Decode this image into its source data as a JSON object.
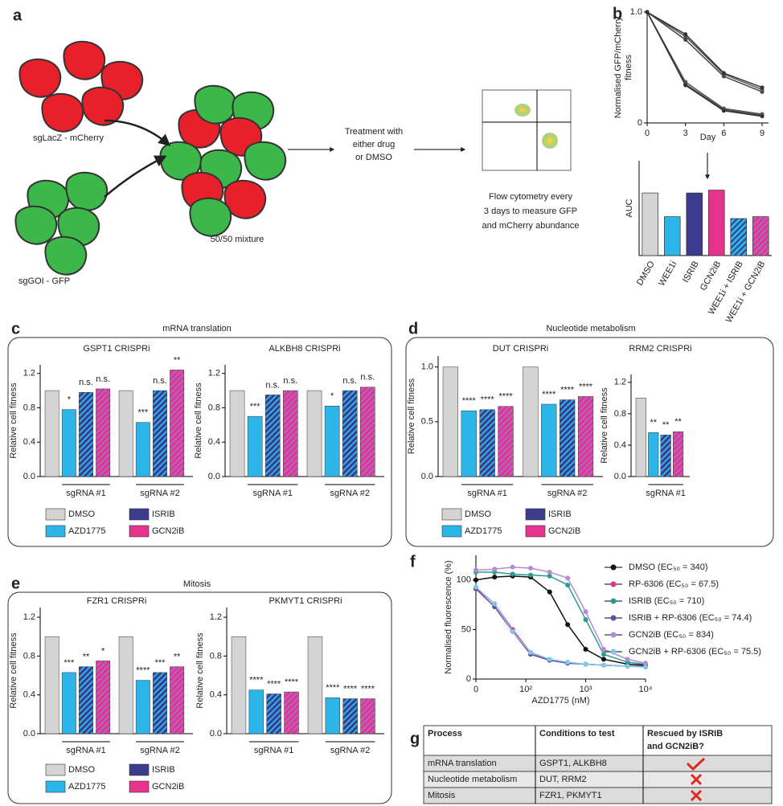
{
  "panel_letters": [
    "a",
    "b",
    "c",
    "d",
    "e",
    "f",
    "g"
  ],
  "diagram": {
    "red_label": "sgLacZ - mCherry",
    "green_label": "sgGOI - GFP",
    "mixture_label": "50/50 mixture",
    "treatment": [
      "Treatment with",
      "either drug",
      "or DMSO"
    ],
    "flow": [
      "Flow cytometry every",
      "3 days to measure GFP",
      "and mCherry abundance"
    ]
  },
  "sections": [
    {
      "title": "mRNA translation",
      "legend": [
        "DMSO",
        "AZD1775",
        "ISRIB",
        "GCN2iB"
      ]
    },
    {
      "title": "Nucleotide metabolism",
      "legend": [
        "DMSO",
        "AZD1775",
        "ISRIB",
        "GCN2iB"
      ]
    },
    {
      "title": "Mitosis",
      "legend": [
        "DMSO",
        "AZD1775",
        "ISRIB",
        "GCN2iB"
      ]
    }
  ],
  "chart_data": [
    {
      "type": "line",
      "xlabel": "Day",
      "ylabel": [
        "Normalised GFP/mCherry",
        "fitness"
      ],
      "x": [
        0,
        3,
        6,
        9
      ],
      "xlim": [
        0,
        9.5
      ],
      "xticks": [
        0,
        3,
        6,
        9
      ],
      "ylim": [
        0,
        1
      ],
      "yticks": [
        0,
        {
          "value": 1,
          "label": "1.0"
        }
      ],
      "series": [
        {
          "color": "#444444",
          "values": [
            1.0,
            0.75,
            0.42,
            0.28
          ]
        },
        {
          "color": "#555555",
          "values": [
            1.0,
            0.78,
            0.44,
            0.3
          ]
        },
        {
          "color": "#333333",
          "values": [
            1.0,
            0.8,
            0.45,
            0.32
          ]
        },
        {
          "color": "#444444",
          "values": [
            1.0,
            0.35,
            0.12,
            0.07
          ]
        },
        {
          "color": "#555555",
          "values": [
            1.0,
            0.37,
            0.13,
            0.08
          ]
        },
        {
          "color": "#333333",
          "values": [
            1.0,
            0.34,
            0.11,
            0.06
          ]
        }
      ]
    },
    {
      "type": "bar",
      "ylabel": "AUC",
      "categories": [
        "DMSO",
        "WEE1i",
        "ISRIB",
        "GCN2iB",
        "WEE1i + ISRIB",
        "WEE1i + GCN2iB"
      ],
      "values": [
        0.66,
        0.41,
        0.66,
        0.69,
        0.39,
        0.41
      ],
      "ylim": [
        0,
        1
      ],
      "colors": [
        "#d4d4d4",
        "#2bb5e8",
        "#3b3c8e",
        "#e5338e",
        "#2bb5e8",
        "#e5338e"
      ],
      "hatch": [
        null,
        null,
        null,
        null,
        "#3b3c8e",
        "#a66cc8"
      ]
    },
    {
      "type": "grouped_bar",
      "title": "GSPT1 CRISPRi",
      "ylabel": "Relative cell fitness",
      "categories": [
        "sgRNA #1",
        "sgRNA #2"
      ],
      "ylim": [
        0,
        1.3
      ],
      "yticks": [
        {
          "value": 0,
          "label": "0.0"
        },
        {
          "value": 0.4,
          "label": "0.4"
        },
        {
          "value": 0.8,
          "label": "0.8"
        },
        {
          "value": 1.2,
          "label": "1.2"
        }
      ],
      "series": [
        {
          "color": "#d4d4d4",
          "values": [
            1.0,
            1.0
          ]
        },
        {
          "color": "#2bb5e8",
          "values": [
            0.78,
            0.63
          ],
          "annotations": [
            "*",
            "***"
          ]
        },
        {
          "color": "#3b3c8e",
          "hatch": "#2bb5e8",
          "values": [
            0.98,
            1.0
          ],
          "annotations": [
            "n.s.",
            "n.s."
          ]
        },
        {
          "color": "#e5338e",
          "hatch": "#a66cc8",
          "values": [
            1.02,
            1.24
          ],
          "annotations": [
            "n.s.",
            "**"
          ]
        }
      ]
    },
    {
      "type": "grouped_bar",
      "title": "ALKBH8 CRISPRi",
      "ylabel": "Relative cell fitness",
      "categories": [
        "sgRNA #1",
        "sgRNA #2"
      ],
      "ylim": [
        0,
        1.3
      ],
      "yticks": [
        {
          "value": 0,
          "label": "0.0"
        },
        {
          "value": 0.4,
          "label": "0.4"
        },
        {
          "value": 0.8,
          "label": "0.8"
        },
        {
          "value": 1.2,
          "label": "1.2"
        }
      ],
      "series": [
        {
          "color": "#d4d4d4",
          "values": [
            1.0,
            1.0
          ]
        },
        {
          "color": "#2bb5e8",
          "values": [
            0.7,
            0.82
          ],
          "annotations": [
            "***",
            "*"
          ]
        },
        {
          "color": "#3b3c8e",
          "hatch": "#2bb5e8",
          "values": [
            0.95,
            1.0
          ],
          "annotations": [
            "n.s.",
            "n.s."
          ]
        },
        {
          "color": "#e5338e",
          "hatch": "#a66cc8",
          "values": [
            1.0,
            1.04
          ],
          "annotations": [
            "n.s.",
            "n.s."
          ]
        }
      ]
    },
    {
      "type": "grouped_bar",
      "title": "DUT CRISPRi",
      "ylabel": "Relative cell fitness",
      "categories": [
        "sgRNA #1",
        "sgRNA #2"
      ],
      "ylim": [
        0,
        1.1
      ],
      "yticks": [
        {
          "value": 0,
          "label": "0.0"
        },
        {
          "value": 0.5,
          "label": "0.5"
        },
        {
          "value": 1,
          "label": "1.0"
        }
      ],
      "series": [
        {
          "color": "#d4d4d4",
          "values": [
            1.0,
            1.0
          ]
        },
        {
          "color": "#2bb5e8",
          "values": [
            0.6,
            0.66
          ],
          "annotations": [
            "****",
            "****"
          ]
        },
        {
          "color": "#3b3c8e",
          "hatch": "#2bb5e8",
          "values": [
            0.61,
            0.7
          ],
          "annotations": [
            "****",
            "****"
          ]
        },
        {
          "color": "#e5338e",
          "hatch": "#a66cc8",
          "values": [
            0.64,
            0.73
          ],
          "annotations": [
            "****",
            "****"
          ]
        }
      ]
    },
    {
      "type": "grouped_bar",
      "title": "RRM2 CRISPRi",
      "ylabel": "Relative cell fitness",
      "categories": [
        "sgRNA #1"
      ],
      "ylim": [
        0,
        1.3
      ],
      "yticks": [
        {
          "value": 0,
          "label": "0.0"
        },
        {
          "value": 0.4,
          "label": "0.4"
        },
        {
          "value": 0.8,
          "label": "0.8"
        },
        {
          "value": 1.2,
          "label": "1.2"
        }
      ],
      "series": [
        {
          "color": "#d4d4d4",
          "values": [
            1.0
          ]
        },
        {
          "color": "#2bb5e8",
          "values": [
            0.56
          ],
          "annotations": [
            "**"
          ]
        },
        {
          "color": "#3b3c8e",
          "hatch": "#2bb5e8",
          "values": [
            0.53
          ],
          "annotations": [
            "**"
          ]
        },
        {
          "color": "#e5338e",
          "hatch": "#a66cc8",
          "values": [
            0.57
          ],
          "annotations": [
            "**"
          ]
        }
      ]
    },
    {
      "type": "grouped_bar",
      "title": "FZR1 CRISPRi",
      "ylabel": "Relative cell fitness",
      "categories": [
        "sgRNA #1",
        "sgRNA #2"
      ],
      "ylim": [
        0,
        1.3
      ],
      "yticks": [
        {
          "value": 0,
          "label": "0.0"
        },
        {
          "value": 0.4,
          "label": "0.4"
        },
        {
          "value": 0.8,
          "label": "0.8"
        },
        {
          "value": 1.2,
          "label": "1.2"
        }
      ],
      "series": [
        {
          "color": "#d4d4d4",
          "values": [
            1.0,
            1.0
          ]
        },
        {
          "color": "#2bb5e8",
          "values": [
            0.63,
            0.55
          ],
          "annotations": [
            "***",
            "****"
          ]
        },
        {
          "color": "#3b3c8e",
          "hatch": "#2bb5e8",
          "values": [
            0.69,
            0.63
          ],
          "annotations": [
            "**",
            "***"
          ]
        },
        {
          "color": "#e5338e",
          "hatch": "#a66cc8",
          "values": [
            0.75,
            0.69
          ],
          "annotations": [
            "*",
            "**"
          ]
        }
      ]
    },
    {
      "type": "grouped_bar",
      "title": "PKMYT1 CRISPRi",
      "ylabel": "Relative cell fitness",
      "categories": [
        "sgRNA #1",
        "sgRNA #2"
      ],
      "ylim": [
        0,
        1.3
      ],
      "yticks": [
        {
          "value": 0,
          "label": "0.0"
        },
        {
          "value": 0.4,
          "label": "0.4"
        },
        {
          "value": 0.8,
          "label": "0.8"
        },
        {
          "value": 1.2,
          "label": "1.2"
        }
      ],
      "series": [
        {
          "color": "#d4d4d4",
          "values": [
            1.0,
            1.0
          ]
        },
        {
          "color": "#2bb5e8",
          "values": [
            0.45,
            0.37
          ],
          "annotations": [
            "****",
            "****"
          ]
        },
        {
          "color": "#3b3c8e",
          "hatch": "#2bb5e8",
          "values": [
            0.41,
            0.36
          ],
          "annotations": [
            "****",
            "****"
          ]
        },
        {
          "color": "#e5338e",
          "hatch": "#a66cc8",
          "values": [
            0.43,
            0.36
          ],
          "annotations": [
            "****",
            "****"
          ]
        }
      ]
    },
    {
      "type": "line",
      "xscale": "log",
      "xlabel": "AZD1775 (nM)",
      "ylabel": [
        "Normalised fluorescence (%)"
      ],
      "x": [
        0,
        30,
        60,
        120,
        250,
        500,
        1000,
        2000,
        5000,
        10000
      ],
      "xlim": [
        0,
        10000
      ],
      "xticks": [
        0,
        {
          "value": 100,
          "label": "10²"
        },
        {
          "value": 1000,
          "label": "10³"
        },
        {
          "value": 10000,
          "label": "10⁴"
        }
      ],
      "ylim": [
        0,
        125
      ],
      "yticks": [
        0,
        50,
        100
      ],
      "series": [
        {
          "name": "DMSO (EC₅₀ = 340)",
          "color": "#111111",
          "values": [
            100,
            103,
            104,
            103,
            88,
            55,
            30,
            20,
            15,
            14
          ]
        },
        {
          "name": "RP-6306 (EC₅₀ = 67.5)",
          "color": "#e5338e",
          "values": [
            92,
            76,
            50,
            27,
            19,
            16,
            15,
            14,
            13,
            13
          ]
        },
        {
          "name": "ISRIB (EC₅₀ = 710)",
          "color": "#2a9d8f",
          "values": [
            108,
            108,
            106,
            105,
            104,
            95,
            60,
            25,
            17,
            15
          ]
        },
        {
          "name": "ISRIB + RP-6306 (EC₅₀ = 74.4)",
          "color": "#6a4c9c",
          "values": [
            91,
            73,
            48,
            25,
            19,
            16,
            15,
            14,
            13,
            13
          ]
        },
        {
          "name": "GCN2iB (EC₅₀ = 834)",
          "color": "#b48bd6",
          "values": [
            110,
            111,
            113,
            112,
            108,
            102,
            68,
            30,
            20,
            16
          ]
        },
        {
          "name": "GCN2iB + RP-6306 (EC₅₀ = 75.5)",
          "color": "#7ec8e8",
          "values": [
            93,
            76,
            48,
            27,
            20,
            17,
            15,
            14,
            13,
            12
          ]
        }
      ]
    }
  ],
  "table": {
    "header": [
      "Process",
      "Conditions to test",
      "Rescued by ISRIB",
      "and GCN2iB?"
    ],
    "rows": [
      [
        "mRNA translation",
        "GSPT1, ALKBH8"
      ],
      [
        "Nucleotide metabolism",
        "DUT, RRM2"
      ],
      [
        "Mitosis",
        "FZR1, PKMYT1"
      ]
    ]
  }
}
